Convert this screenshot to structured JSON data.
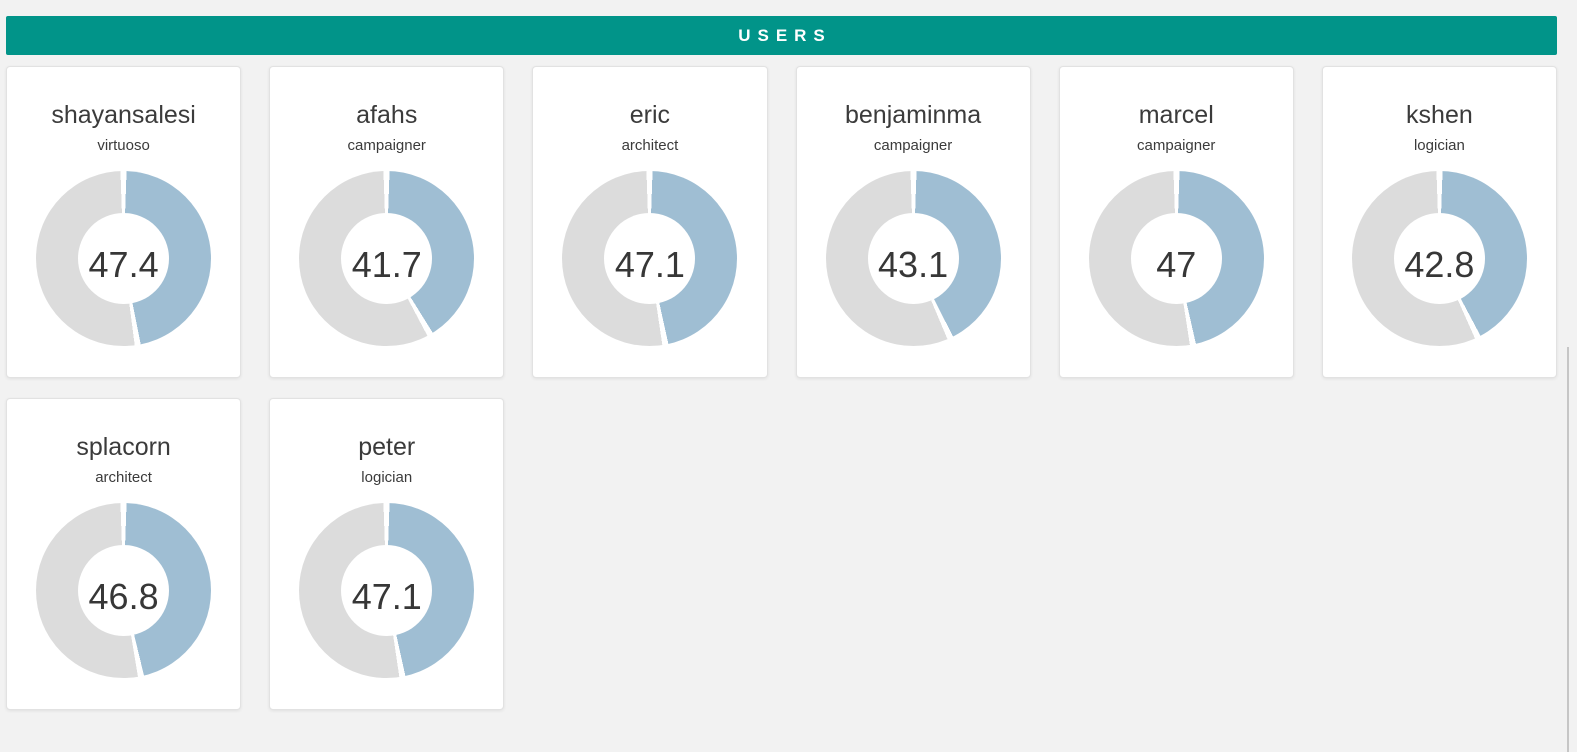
{
  "header": {
    "title": "USERS",
    "background_color": "#019489",
    "text_color": "#ffffff"
  },
  "donut": {
    "filled_color": "#9fbed3",
    "remainder_color": "#dcdcdc",
    "separator_color": "#ffffff"
  },
  "page_background_color": "#f2f2f2",
  "users": [
    {
      "name": "shayansalesi",
      "role": "virtuoso",
      "value": 47.4
    },
    {
      "name": "afahs",
      "role": "campaigner",
      "value": 41.7
    },
    {
      "name": "eric",
      "role": "architect",
      "value": 47.1
    },
    {
      "name": "benjaminma",
      "role": "campaigner",
      "value": 43.1
    },
    {
      "name": "marcel",
      "role": "campaigner",
      "value": 47
    },
    {
      "name": "kshen",
      "role": "logician",
      "value": 42.8
    },
    {
      "name": "splacorn",
      "role": "architect",
      "value": 46.8
    },
    {
      "name": "peter",
      "role": "logician",
      "value": 47.1
    }
  ]
}
